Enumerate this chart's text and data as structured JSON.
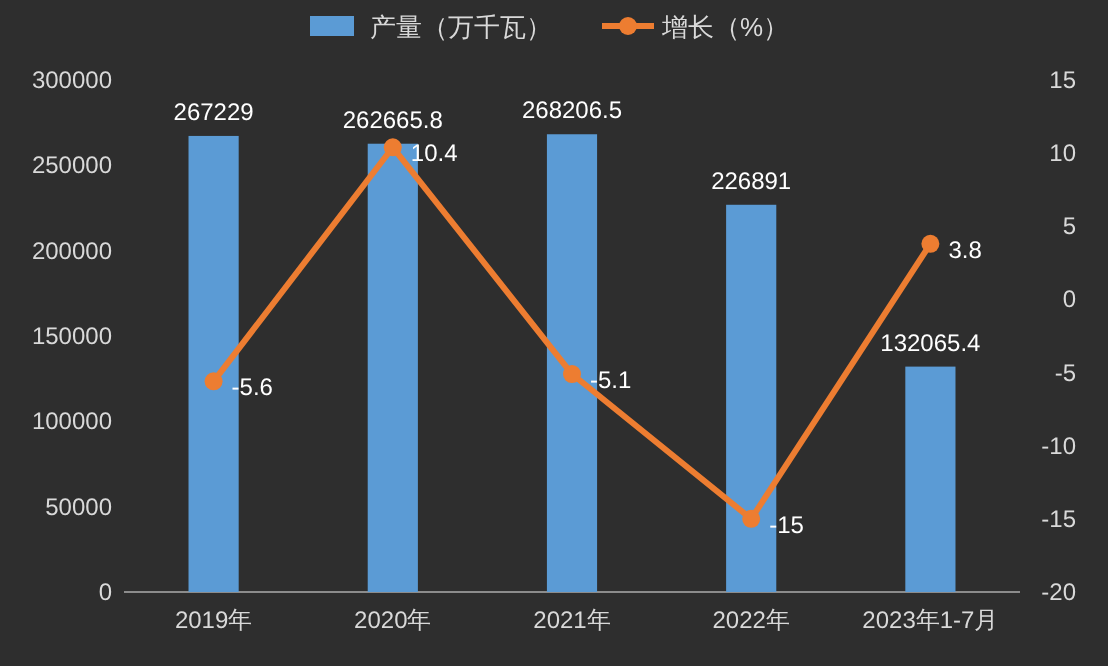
{
  "chart_data": {
    "type": "bar",
    "categories": [
      "2019年",
      "2020年",
      "2021年",
      "2022年",
      "2023年1-7月"
    ],
    "series": [
      {
        "name": "产量（万千瓦）",
        "color": "#5b9bd5",
        "values": [
          267229,
          262665.8,
          268206.5,
          226891,
          132065.4
        ]
      },
      {
        "name": "增长（%）",
        "type": "line",
        "axis": "y2",
        "color": "#ed7d31",
        "values": [
          -5.6,
          10.4,
          -5.1,
          -15,
          3.8
        ]
      }
    ],
    "ylim": [
      0,
      300000
    ],
    "yticks": [
      0,
      50000,
      100000,
      150000,
      200000,
      250000,
      300000
    ],
    "y2lim": [
      -20,
      15
    ],
    "y2ticks": [
      -20,
      -15,
      -10,
      -5,
      0,
      5,
      10,
      15
    ],
    "data_labels": true,
    "legend": "top",
    "marker": "circle",
    "line_style": "solid"
  }
}
